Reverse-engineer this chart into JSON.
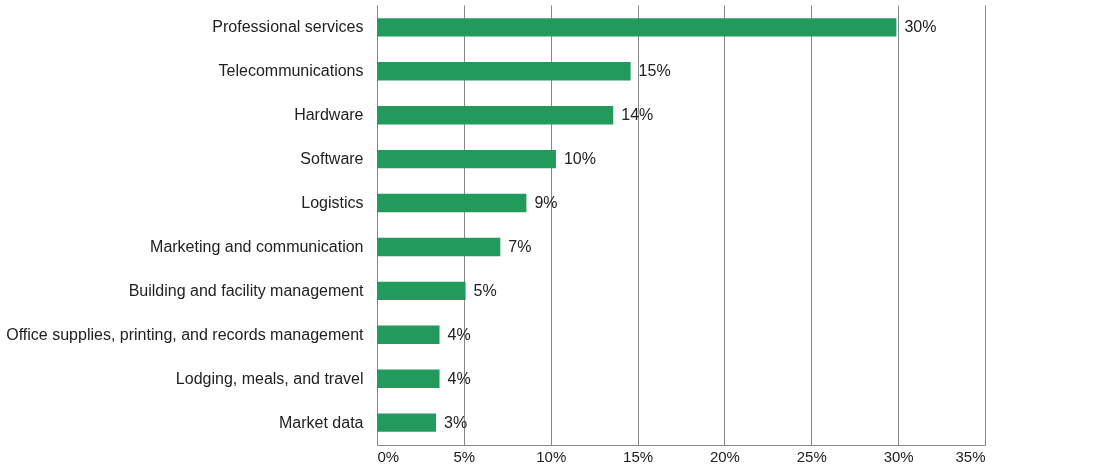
{
  "chart_data": {
    "type": "bar",
    "orientation": "horizontal",
    "categories": [
      "Professional services",
      "Telecommunications",
      "Hardware",
      "Software",
      "Logistics",
      "Marketing and communication",
      "Building and facility management",
      "Office supplies, printing, and records management",
      "Lodging, meals, and travel",
      "Market data"
    ],
    "values": [
      29.9,
      14.6,
      13.6,
      10.3,
      8.6,
      7.1,
      5.1,
      3.6,
      3.6,
      3.4
    ],
    "value_labels": [
      "30%",
      "15%",
      "14%",
      "10%",
      "9%",
      "7%",
      "5%",
      "4%",
      "4%",
      "3%"
    ],
    "color": "#229a5c",
    "xlim": [
      0,
      35
    ],
    "xticks": [
      {
        "value": 0,
        "label": "0%"
      },
      {
        "value": 5,
        "label": "5%"
      },
      {
        "value": 10,
        "label": "10%"
      },
      {
        "value": 15,
        "label": "15%"
      },
      {
        "value": 20,
        "label": "20%"
      },
      {
        "value": 25,
        "label": "25%"
      },
      {
        "value": 30,
        "label": "30%"
      },
      {
        "value": 35,
        "label": "35%"
      }
    ],
    "grid": "x"
  }
}
